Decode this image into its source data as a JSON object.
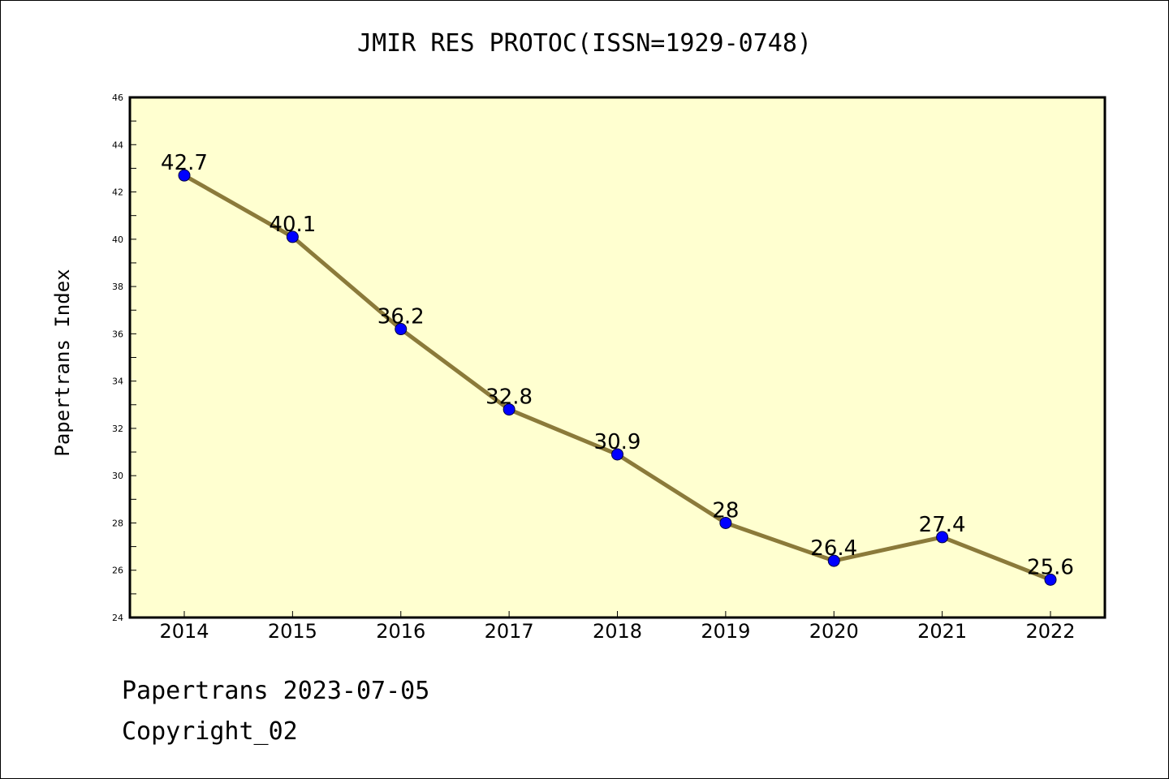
{
  "chart_data": {
    "type": "line",
    "title": "JMIR RES PROTOC(ISSN=1929-0748)",
    "ylabel": "Papertrans Index",
    "xlabel": "",
    "categories": [
      "2014",
      "2015",
      "2016",
      "2017",
      "2018",
      "2019",
      "2020",
      "2021",
      "2022"
    ],
    "values": [
      42.7,
      40.1,
      36.2,
      32.8,
      30.9,
      28,
      26.4,
      27.4,
      25.6
    ],
    "data_labels": [
      "42.7",
      "40.1",
      "36.2",
      "32.8",
      "30.9",
      "28",
      "26.4",
      "27.4",
      "25.6"
    ],
    "ylim": [
      24,
      46
    ],
    "yticks": [
      24,
      26,
      28,
      30,
      32,
      34,
      36,
      38,
      40,
      42,
      44,
      46
    ],
    "grid": false,
    "colors": {
      "plot_background": "#ffffd0",
      "line": "#8b7a3a",
      "marker": "#0000ff"
    }
  },
  "footer": {
    "date_text": "Papertrans 2023-07-05",
    "copyright_text": "Copyright_02"
  }
}
